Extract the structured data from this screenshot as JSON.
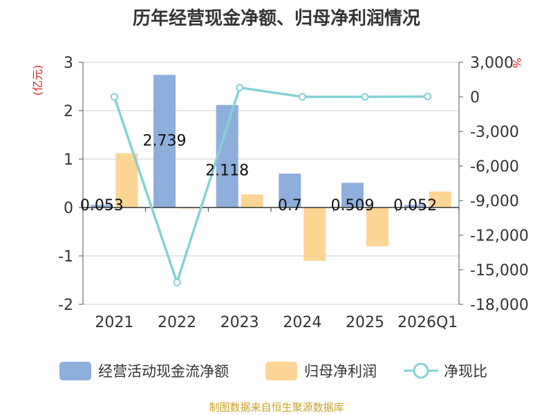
{
  "chart_data": {
    "type": "bar",
    "title": "历年经营现金净额、归母净利润情况",
    "ylabel": "(亿元)",
    "y2label": "%",
    "categories": [
      "2021",
      "2022",
      "2023",
      "2024",
      "2025",
      "2026Q1"
    ],
    "ylim": [
      -2,
      3
    ],
    "yticks": [
      3,
      2,
      1,
      0,
      -1,
      -2
    ],
    "y2lim": [
      -18000,
      3000
    ],
    "y2ticks": [
      "3,000",
      "0",
      "-3,000",
      "-6,000",
      "-9,000",
      "-12,000",
      "-15,000",
      "-18,000"
    ],
    "y2tick_values": [
      3000,
      0,
      -3000,
      -6000,
      -9000,
      -12000,
      -15000,
      -18000
    ],
    "series": [
      {
        "name": "经营活动现金流净额",
        "type": "bar",
        "axis": "left",
        "color": "#8eaedb",
        "values": [
          0.053,
          2.739,
          2.118,
          0.7,
          0.509,
          0.052
        ],
        "labels": [
          "0.053",
          "2.739",
          "2.118",
          "0.7",
          "0.509",
          "0.052"
        ]
      },
      {
        "name": "归母净利润",
        "type": "bar",
        "axis": "left",
        "color": "#fdd594",
        "values": [
          1.12,
          -0.02,
          0.27,
          -1.1,
          -0.8,
          0.33
        ]
      },
      {
        "name": "净现比",
        "type": "line",
        "axis": "right",
        "color": "#84d1d6",
        "values": [
          0,
          -16100,
          800,
          0,
          0,
          20
        ]
      }
    ],
    "grid": true,
    "legend_position": "bottom"
  },
  "source": "制图数据来自恒生聚源数据库"
}
